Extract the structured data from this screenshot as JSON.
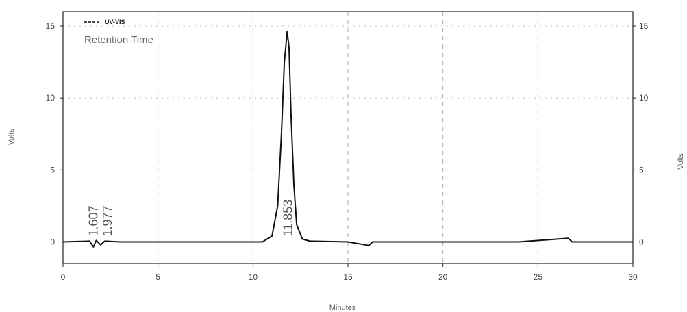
{
  "chart_data": {
    "type": "line",
    "xlabel": "Minutes",
    "ylabel_left": "Volts",
    "ylabel_right": "Volts",
    "xlim": [
      0,
      30
    ],
    "ylim": [
      -1.5,
      16
    ],
    "x_ticks": [
      0,
      5,
      10,
      15,
      20,
      25,
      30
    ],
    "y_ticks": [
      0,
      5,
      10,
      15
    ],
    "x_tick_labels": [
      "0",
      "5",
      "10",
      "15",
      "20",
      "25",
      "30"
    ],
    "y_tick_labels": [
      "0",
      "5",
      "10",
      "15"
    ],
    "grid": "dashed",
    "legend": {
      "placement": "top-left",
      "title": "Retention Time",
      "series_label": "UV-VIS"
    },
    "series": [
      {
        "name": "UV-VIS",
        "color": "#111111",
        "x": [
          0,
          1.4,
          1.6,
          1.75,
          1.977,
          2.2,
          3,
          6,
          9,
          10.5,
          11.0,
          11.3,
          11.5,
          11.65,
          11.8,
          11.9,
          12.0,
          12.15,
          12.3,
          12.6,
          13.0,
          15,
          16.1,
          16.3,
          18,
          20,
          24,
          26.6,
          26.8,
          28,
          30
        ],
        "y": [
          0,
          0.05,
          -0.35,
          0.1,
          -0.2,
          0.05,
          0,
          0,
          0,
          0,
          0.4,
          2.5,
          7.5,
          12.5,
          14.6,
          13.5,
          9,
          4,
          1.2,
          0.2,
          0.05,
          0,
          -0.25,
          0,
          0,
          0,
          0,
          0.25,
          0,
          0,
          0
        ]
      }
    ],
    "peak_labels": [
      {
        "x": 1.607,
        "text": "1.607"
      },
      {
        "x": 1.977,
        "text": "1.977"
      },
      {
        "x": 11.853,
        "text": "11.853"
      }
    ]
  }
}
